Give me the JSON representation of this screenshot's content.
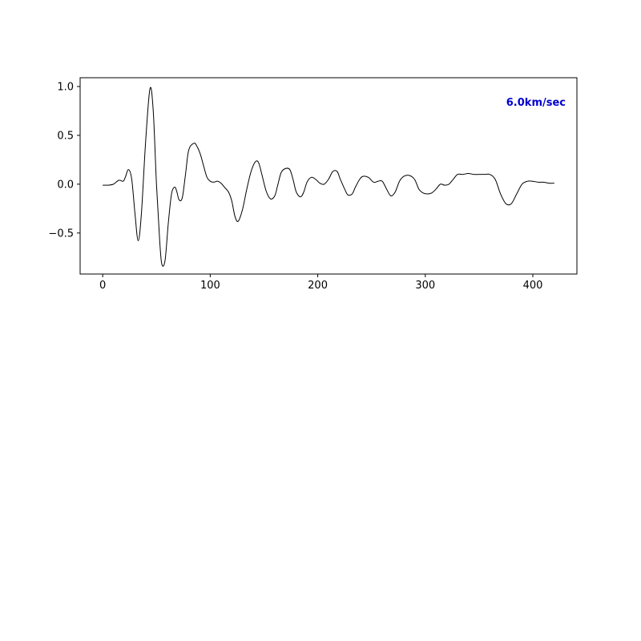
{
  "chart_data": {
    "type": "line",
    "title": "",
    "xlabel": "",
    "ylabel": "",
    "xlim": [
      -21,
      441
    ],
    "ylim": [
      -0.92,
      1.09
    ],
    "xticks": [
      0,
      100,
      200,
      300,
      400
    ],
    "xtick_labels": [
      "0",
      "100",
      "200",
      "300",
      "400"
    ],
    "yticks": [
      1.0,
      0.5,
      0.0,
      -0.5
    ],
    "ytick_labels": [
      "1.0",
      "0.5",
      "0.0",
      "−0.5"
    ],
    "grid": false,
    "legend": "none",
    "annotation": {
      "text": "6.0km/sec",
      "color": "#0000cc",
      "placement": "top-right"
    },
    "line_color": "#000000",
    "series": [
      {
        "x": [
          0,
          5,
          10,
          15,
          19,
          21,
          24,
          27,
          30,
          33,
          36,
          40,
          44,
          47,
          50,
          53,
          55,
          58,
          61,
          64,
          67,
          69,
          71,
          74,
          77,
          80,
          85,
          88,
          91,
          94,
          97,
          100,
          103,
          107,
          110,
          114,
          117,
          120,
          123,
          126,
          130,
          134,
          138,
          142,
          145,
          148,
          152,
          156,
          160,
          163,
          166,
          170,
          174,
          177,
          180,
          184,
          187,
          190,
          194,
          198,
          202,
          206,
          210,
          214,
          218,
          221,
          225,
          228,
          232,
          235,
          239,
          242,
          247,
          252,
          256,
          260,
          264,
          268,
          272,
          276,
          280,
          285,
          290,
          294,
          298,
          302,
          306,
          310,
          314,
          318,
          322,
          326,
          330,
          335,
          340,
          345,
          350,
          355,
          360,
          365,
          370,
          375,
          380,
          385,
          390,
          395,
          400,
          405,
          410,
          415,
          420
        ],
        "y": [
          -0.01,
          -0.01,
          0.0,
          0.04,
          0.03,
          0.07,
          0.15,
          0.05,
          -0.3,
          -0.58,
          -0.3,
          0.45,
          0.98,
          0.75,
          0.0,
          -0.58,
          -0.82,
          -0.78,
          -0.4,
          -0.1,
          -0.03,
          -0.08,
          -0.16,
          -0.14,
          0.1,
          0.35,
          0.42,
          0.38,
          0.3,
          0.18,
          0.07,
          0.03,
          0.02,
          0.03,
          0.01,
          -0.04,
          -0.08,
          -0.17,
          -0.33,
          -0.38,
          -0.26,
          -0.05,
          0.13,
          0.23,
          0.22,
          0.1,
          -0.07,
          -0.15,
          -0.12,
          0.0,
          0.12,
          0.16,
          0.15,
          0.05,
          -0.08,
          -0.13,
          -0.08,
          0.02,
          0.07,
          0.05,
          0.01,
          0.0,
          0.05,
          0.13,
          0.13,
          0.05,
          -0.05,
          -0.11,
          -0.1,
          -0.03,
          0.05,
          0.08,
          0.07,
          0.02,
          0.03,
          0.03,
          -0.05,
          -0.12,
          -0.08,
          0.03,
          0.08,
          0.09,
          0.05,
          -0.05,
          -0.09,
          -0.1,
          -0.09,
          -0.05,
          0.0,
          -0.01,
          0.0,
          0.05,
          0.1,
          0.1,
          0.11,
          0.1,
          0.1,
          0.1,
          0.1,
          0.05,
          -0.1,
          -0.2,
          -0.2,
          -0.1,
          0.0,
          0.03,
          0.03,
          0.02,
          0.02,
          0.01,
          0.01
        ]
      }
    ]
  }
}
